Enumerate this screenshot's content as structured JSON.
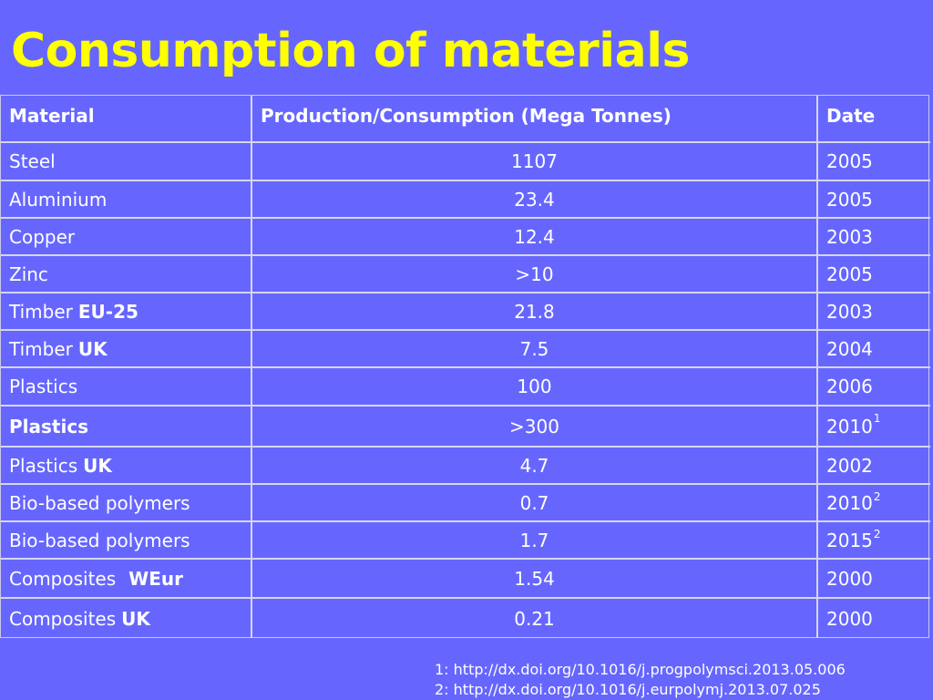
{
  "title": "Consumption of materials",
  "table": {
    "headers": [
      "Material",
      "Production/Consumption (Mega Tonnes)",
      "Date"
    ],
    "rows": [
      {
        "material": "Steel",
        "material_qualifier": "",
        "value": "1107",
        "date": "2005",
        "date_note": ""
      },
      {
        "material": "Aluminium",
        "material_qualifier": "",
        "value": "23.4",
        "date": "2005",
        "date_note": ""
      },
      {
        "material": "Copper",
        "material_qualifier": "",
        "value": "12.4",
        "date": "2003",
        "date_note": ""
      },
      {
        "material": "Zinc",
        "material_qualifier": "",
        "value": ">10",
        "date": "2005",
        "date_note": ""
      },
      {
        "material": "Timber",
        "material_qualifier": "EU-25",
        "value": "21.8",
        "date": "2003",
        "date_note": ""
      },
      {
        "material": "Timber",
        "material_qualifier": "UK",
        "value": "7.5",
        "date": "2004",
        "date_note": ""
      },
      {
        "material": "Plastics",
        "material_qualifier": "",
        "value": "100",
        "date": "2006",
        "date_note": ""
      },
      {
        "material": "Plastics",
        "material_qualifier": "",
        "value": ">300",
        "date": "2010",
        "date_note": "1"
      },
      {
        "material": "Plastics",
        "material_qualifier": "UK",
        "value": "4.7",
        "date": "2002",
        "date_note": ""
      },
      {
        "material": "Bio-based polymers",
        "material_qualifier": "",
        "value": "0.7",
        "date": "2010",
        "date_note": "2"
      },
      {
        "material": "Bio-based polymers",
        "material_qualifier": "",
        "value": "1.7",
        "date": "2015",
        "date_note": "2"
      },
      {
        "material": "Composites",
        "material_qualifier": "WEur",
        "value": "1.54",
        "date": "2000",
        "date_note": ""
      },
      {
        "material": "Composites",
        "material_qualifier": "UK",
        "value": "0.21",
        "date": "2000",
        "date_note": ""
      }
    ]
  },
  "footnotes": [
    "1: http://dx.doi.org/10.1016/j.progpolymsci.2013.05.006",
    "2: http://dx.doi.org/10.1016/j.eurpolymj.2013.07.025"
  ]
}
